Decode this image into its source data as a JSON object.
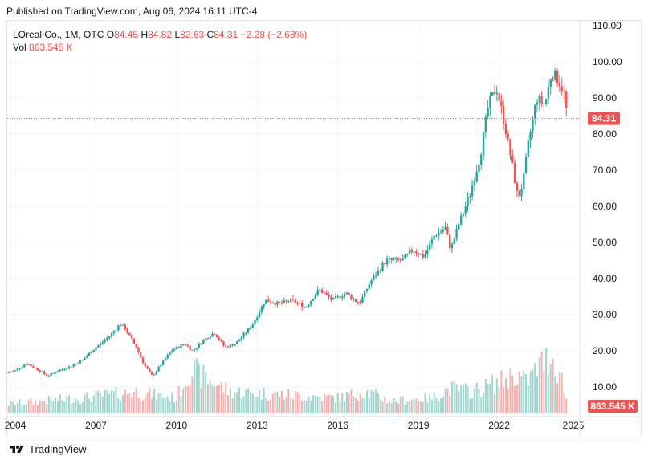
{
  "header": {
    "published": "Published on TradingView.com, Aug 06, 2024 16:11 UTC-4"
  },
  "legend": {
    "symbol": "LOreal Co., 1M, OTC",
    "o_label": "O",
    "o": "84.45",
    "h_label": "H",
    "h": "84.82",
    "l_label": "L",
    "l": "82.63",
    "c_label": "C",
    "c": "84.31",
    "change": "−2.28 (−2.63%)",
    "vol_label": "Vol",
    "vol": "863.545 K"
  },
  "footer": {
    "brand": "TradingView"
  },
  "colors": {
    "up": "#26a69a",
    "down": "#ef5350",
    "vol_up": "#9fd6d0",
    "vol_down": "#f5b1af",
    "grid": "#f0f3fa"
  },
  "chart_data": {
    "type": "candlestick",
    "y_ticks": [
      "110.00",
      "100.00",
      "90.00",
      "80.00",
      "70.00",
      "60.00",
      "50.00",
      "40.00",
      "30.00",
      "20.00",
      "10.00"
    ],
    "ylim": [
      0,
      110
    ],
    "x_ticks": [
      "2004",
      "2007",
      "2010",
      "2013",
      "2016",
      "2019",
      "2022",
      "2025"
    ],
    "xlim": [
      2003.7,
      2025.0
    ],
    "last_price": 84.31,
    "last_price_label": "84.31",
    "last_volume_label": "863.545 K",
    "price_series": [
      [
        2003.75,
        14
      ],
      [
        2004.0,
        14.5
      ],
      [
        2004.4,
        16.5
      ],
      [
        2004.8,
        15
      ],
      [
        2005.2,
        13
      ],
      [
        2005.6,
        14.5
      ],
      [
        2006.0,
        15.5
      ],
      [
        2006.5,
        17.5
      ],
      [
        2007.0,
        21
      ],
      [
        2007.5,
        24
      ],
      [
        2007.9,
        27.5
      ],
      [
        2008.1,
        26
      ],
      [
        2008.5,
        21
      ],
      [
        2008.8,
        16
      ],
      [
        2009.1,
        13
      ],
      [
        2009.3,
        15
      ],
      [
        2009.8,
        20
      ],
      [
        2010.3,
        22
      ],
      [
        2010.6,
        20
      ],
      [
        2011.0,
        23
      ],
      [
        2011.4,
        25
      ],
      [
        2011.8,
        21
      ],
      [
        2012.2,
        22
      ],
      [
        2012.8,
        27
      ],
      [
        2013.3,
        34
      ],
      [
        2013.8,
        33
      ],
      [
        2014.3,
        34
      ],
      [
        2014.8,
        32
      ],
      [
        2015.3,
        37
      ],
      [
        2015.8,
        34
      ],
      [
        2016.3,
        36
      ],
      [
        2016.8,
        33
      ],
      [
        2017.2,
        39
      ],
      [
        2017.8,
        45
      ],
      [
        2018.4,
        45
      ],
      [
        2018.8,
        48
      ],
      [
        2019.2,
        46
      ],
      [
        2019.6,
        52
      ],
      [
        2020.0,
        54
      ],
      [
        2020.2,
        48
      ],
      [
        2020.5,
        55
      ],
      [
        2020.9,
        63
      ],
      [
        2021.3,
        74
      ],
      [
        2021.6,
        88
      ],
      [
        2021.9,
        93
      ],
      [
        2022.2,
        83
      ],
      [
        2022.5,
        71
      ],
      [
        2022.7,
        62
      ],
      [
        2022.9,
        67
      ],
      [
        2023.1,
        78
      ],
      [
        2023.4,
        90
      ],
      [
        2023.7,
        88
      ],
      [
        2023.95,
        97
      ],
      [
        2024.2,
        95
      ],
      [
        2024.4,
        92
      ],
      [
        2024.55,
        84.31
      ]
    ],
    "volume_series": [
      [
        2003.75,
        3
      ],
      [
        2005.0,
        4
      ],
      [
        2006.5,
        5
      ],
      [
        2008.5,
        7
      ],
      [
        2009.0,
        6
      ],
      [
        2010.0,
        5
      ],
      [
        2010.5,
        14
      ],
      [
        2012.0,
        7
      ],
      [
        2014.0,
        6
      ],
      [
        2016.0,
        5
      ],
      [
        2017.0,
        7
      ],
      [
        2018.0,
        4
      ],
      [
        2019.5,
        5
      ],
      [
        2020.2,
        8
      ],
      [
        2021.0,
        7
      ],
      [
        2022.3,
        11
      ],
      [
        2022.6,
        13
      ],
      [
        2023.0,
        10
      ],
      [
        2023.9,
        19
      ],
      [
        2024.3,
        12
      ],
      [
        2024.55,
        3
      ]
    ]
  }
}
